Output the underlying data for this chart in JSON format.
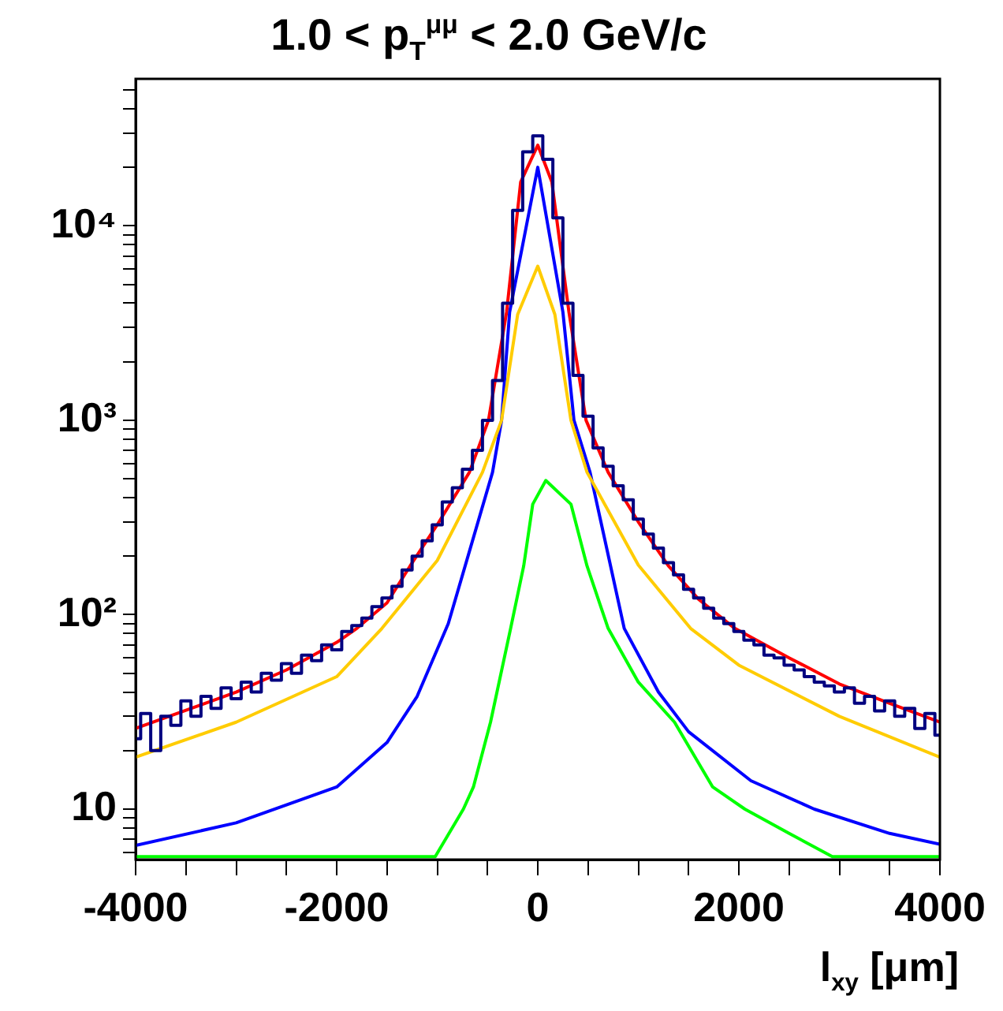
{
  "chart_data": {
    "type": "line",
    "title": "1.0 < p$_{T}$$^{μμ}$ < 2.0 GeV/c",
    "xlabel": "l$_{xy}$  [μm]",
    "log": "y",
    "grid": false,
    "legend": false,
    "marker": "none",
    "line_style": "solid",
    "xlim": [
      -4000,
      4000
    ],
    "xticks": [
      -4000,
      {
        "value": -3500,
        "label": null
      },
      {
        "value": -3000,
        "label": null
      },
      {
        "value": -2500,
        "label": null
      },
      -2000,
      {
        "value": -1500,
        "label": null
      },
      {
        "value": -1000,
        "label": null
      },
      {
        "value": -500,
        "label": null
      },
      0,
      {
        "value": 500,
        "label": null
      },
      {
        "value": 1000,
        "label": null
      },
      {
        "value": 1500,
        "label": null
      },
      2000,
      {
        "value": 2500,
        "label": null
      },
      {
        "value": 3000,
        "label": null
      },
      {
        "value": 3500,
        "label": null
      },
      4000
    ],
    "ylim": [
      5.5,
      57000
    ],
    "yticks": [
      {
        "value": 6,
        "label": null
      },
      {
        "value": 7,
        "label": null
      },
      {
        "value": 8,
        "label": null
      },
      {
        "value": 9,
        "label": null
      },
      10,
      {
        "value": 20,
        "label": null
      },
      {
        "value": 30,
        "label": null
      },
      {
        "value": 40,
        "label": null
      },
      {
        "value": 50,
        "label": null
      },
      {
        "value": 60,
        "label": null
      },
      {
        "value": 70,
        "label": null
      },
      {
        "value": 80,
        "label": null
      },
      {
        "value": 90,
        "label": null
      },
      {
        "value": 100,
        "label": "10²"
      },
      {
        "value": 200,
        "label": null
      },
      {
        "value": 300,
        "label": null
      },
      {
        "value": 400,
        "label": null
      },
      {
        "value": 500,
        "label": null
      },
      {
        "value": 600,
        "label": null
      },
      {
        "value": 700,
        "label": null
      },
      {
        "value": 800,
        "label": null
      },
      {
        "value": 900,
        "label": null
      },
      {
        "value": 1000,
        "label": "10³"
      },
      {
        "value": 2000,
        "label": null
      },
      {
        "value": 3000,
        "label": null
      },
      {
        "value": 4000,
        "label": null
      },
      {
        "value": 5000,
        "label": null
      },
      {
        "value": 6000,
        "label": null
      },
      {
        "value": 7000,
        "label": null
      },
      {
        "value": 8000,
        "label": null
      },
      {
        "value": 9000,
        "label": null
      },
      {
        "value": 10000,
        "label": "10⁴"
      },
      {
        "value": 20000,
        "label": null
      },
      {
        "value": 30000,
        "label": null
      },
      {
        "value": 40000,
        "label": null
      },
      {
        "value": 50000,
        "label": null
      }
    ],
    "series": [
      {
        "type": "step",
        "color": "#000080",
        "x": [
          -4000,
          -3900,
          -3800,
          -3700,
          -3600,
          -3500,
          -3400,
          -3300,
          -3200,
          -3100,
          -3000,
          -2900,
          -2800,
          -2700,
          -2600,
          -2500,
          -2400,
          -2300,
          -2200,
          -2100,
          -2000,
          -1900,
          -1800,
          -1700,
          -1600,
          -1500,
          -1400,
          -1300,
          -1200,
          -1100,
          -1000,
          -900,
          -800,
          -700,
          -600,
          -500,
          -400,
          -300,
          -200,
          -100,
          0,
          100,
          200,
          300,
          400,
          500,
          600,
          700,
          800,
          900,
          1000,
          1100,
          1200,
          1300,
          1400,
          1500,
          1600,
          1700,
          1800,
          1900,
          2000,
          2100,
          2200,
          2300,
          2400,
          2500,
          2600,
          2700,
          2800,
          2900,
          3000,
          3100,
          3200,
          3300,
          3400,
          3500,
          3600,
          3700,
          3800,
          3900,
          4000
        ],
        "values": [
          23,
          31,
          20,
          30,
          27,
          36,
          30,
          38,
          33,
          42,
          37,
          45,
          40,
          50,
          46,
          56,
          50,
          62,
          58,
          70,
          66,
          82,
          88,
          96,
          110,
          122,
          140,
          170,
          200,
          240,
          290,
          380,
          450,
          560,
          700,
          1000,
          1600,
          4000,
          12000,
          24000,
          29000,
          22000,
          11000,
          4000,
          1700,
          1050,
          720,
          580,
          460,
          390,
          310,
          260,
          220,
          185,
          160,
          135,
          122,
          108,
          96,
          90,
          82,
          74,
          70,
          62,
          60,
          55,
          52,
          48,
          45,
          43,
          40,
          42,
          35,
          38,
          32,
          36,
          30,
          33,
          26,
          31,
          24
        ]
      },
      {
        "color": "#ffcc00",
        "x": [
          -4000,
          -3000,
          -2000,
          -1550,
          -1000,
          -550,
          -360,
          -200,
          0,
          170,
          330,
          490,
          1000,
          1520,
          2000,
          3000,
          4000
        ],
        "values": [
          18.5,
          28,
          48,
          85,
          190,
          540,
          1000,
          3500,
          6200,
          3500,
          1000,
          540,
          180,
          85,
          55,
          30,
          18.5
        ]
      },
      {
        "color": "#0000ff",
        "x": [
          -4000,
          -3000,
          -2000,
          -1500,
          -1200,
          -890,
          -450,
          -360,
          -280,
          0,
          250,
          360,
          520,
          860,
          1200,
          1500,
          2120,
          2750,
          3500,
          4000
        ],
        "values": [
          6.5,
          8.5,
          13,
          22,
          38,
          90,
          540,
          1000,
          3600,
          20000,
          3600,
          1000,
          540,
          85,
          40,
          25,
          14,
          10,
          7.5,
          6.6
        ]
      },
      {
        "color": "#00ff00",
        "x": [
          -4000,
          -1020,
          -740,
          -640,
          -470,
          -270,
          -140,
          -50,
          80,
          330,
          490,
          700,
          1000,
          1360,
          1740,
          2060,
          2500,
          2930,
          4000
        ],
        "values": [
          5.7,
          5.7,
          10,
          13,
          28,
          85,
          178,
          370,
          490,
          370,
          178,
          85,
          45,
          28,
          13,
          10,
          7.5,
          5.7,
          5.7
        ]
      },
      {
        "color": "#ff0000",
        "x": [
          -4000,
          -3000,
          -2500,
          -2000,
          -1800,
          -1500,
          -1270,
          -1000,
          -680,
          -490,
          -310,
          -170,
          0,
          140,
          310,
          480,
          700,
          1000,
          1300,
          1600,
          1960,
          2500,
          3000,
          3500,
          4000
        ],
        "values": [
          26,
          40,
          52,
          72,
          85,
          115,
          178,
          290,
          540,
          1000,
          3600,
          16800,
          26000,
          16800,
          3600,
          1000,
          540,
          300,
          178,
          120,
          85,
          60,
          44,
          35,
          28
        ]
      }
    ]
  }
}
